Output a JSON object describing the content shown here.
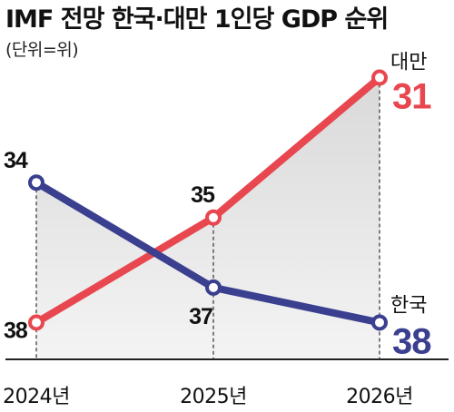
{
  "chart_data": {
    "type": "line",
    "title": "IMF 전망 한국·대만 1인당 GDP 순위",
    "subtitle": "(단위=위)",
    "categories": [
      "2024년",
      "2025년",
      "2026년"
    ],
    "y_reversed": true,
    "ylim": [
      30,
      39
    ],
    "series": [
      {
        "name": "대만",
        "values": [
          38,
          35,
          31
        ],
        "value_labels": [
          "38",
          "35",
          "31"
        ],
        "color": "#e8474f"
      },
      {
        "name": "한국",
        "values": [
          34,
          37,
          38
        ],
        "value_labels": [
          "34",
          "37",
          "38"
        ],
        "color": "#3a3f8f"
      }
    ],
    "area_fill": "#e8e8e8",
    "grid": "dashed-vertical"
  }
}
